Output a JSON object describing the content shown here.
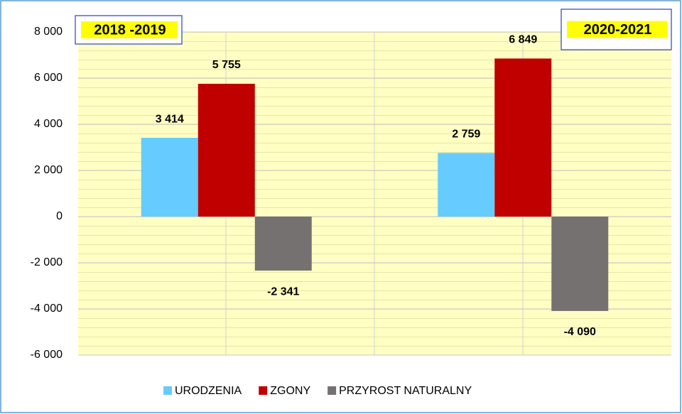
{
  "chart_data": {
    "type": "bar",
    "categories": [
      "2018 -2019",
      "2020-2021"
    ],
    "series": [
      {
        "name": "URODZENIA",
        "color": "#66ccff",
        "values": [
          3414,
          2759
        ],
        "value_labels": [
          "3 414",
          "2 759"
        ]
      },
      {
        "name": "ZGONY",
        "color": "#c00000",
        "values": [
          5755,
          6849
        ],
        "value_labels": [
          "5 755",
          "6 849"
        ]
      },
      {
        "name": "PRZYROST NATURALNY",
        "color": "#767171",
        "values": [
          -2341,
          -4090
        ],
        "value_labels": [
          "-2 341",
          "-4 090"
        ]
      }
    ],
    "ylim": [
      -6000,
      8000
    ],
    "yticks": [
      {
        "value": -6000,
        "label": "-6 000"
      },
      {
        "value": -4000,
        "label": "-4 000"
      },
      {
        "value": -2000,
        "label": "-2 000"
      },
      0,
      {
        "value": 2000,
        "label": "2 000"
      },
      {
        "value": 4000,
        "label": "4 000"
      },
      {
        "value": 6000,
        "label": "6 000"
      },
      {
        "value": 8000,
        "label": "8 000"
      }
    ],
    "grid": true,
    "legend": "bottom"
  }
}
